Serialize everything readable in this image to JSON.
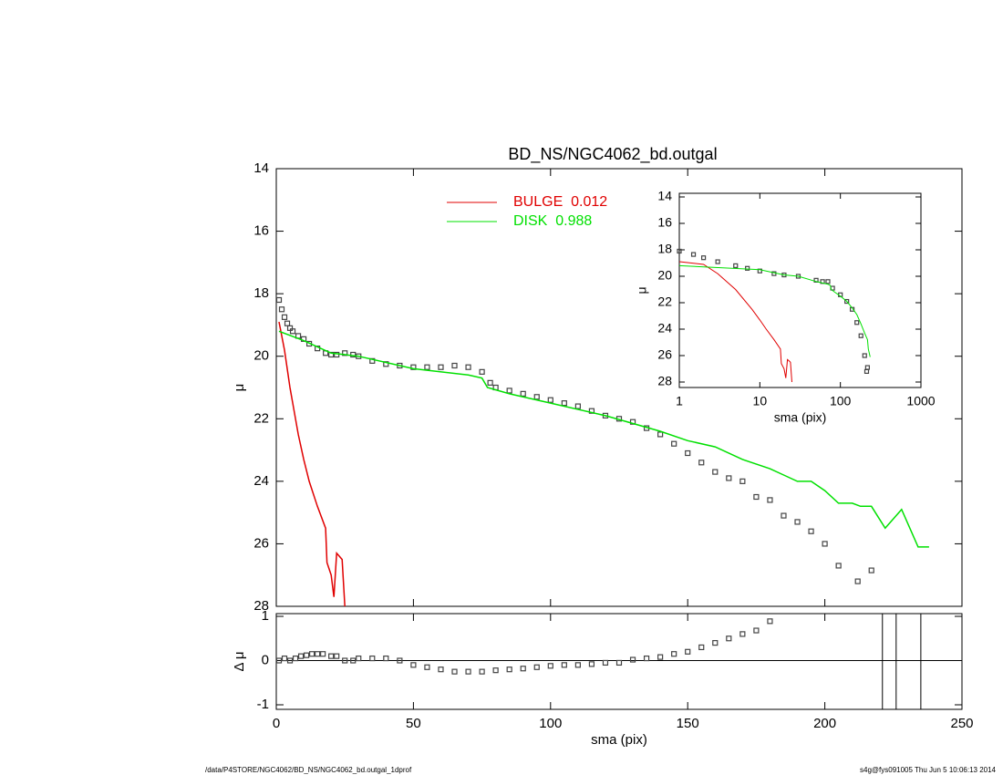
{
  "chart_data": [
    {
      "type": "line",
      "title": "BD_NS/NGC4062_bd.outgal",
      "ylabel": "μ",
      "xlim": [
        0,
        250
      ],
      "xticks": [
        0,
        50,
        100,
        150,
        200,
        250
      ],
      "ylim": [
        14,
        28
      ],
      "yticks": [
        14,
        16,
        18,
        20,
        22,
        24,
        26,
        28
      ],
      "y_reversed": true,
      "legend": "top-center",
      "series": [
        {
          "type": "scatter",
          "color": "#444444",
          "x": [
            1,
            2,
            3,
            4,
            5,
            6,
            8,
            10,
            12,
            15,
            18,
            20,
            22,
            25,
            28,
            30,
            35,
            40,
            45,
            50,
            55,
            60,
            65,
            70,
            75,
            78,
            80,
            85,
            90,
            95,
            100,
            105,
            110,
            115,
            120,
            125,
            130,
            135,
            140,
            145,
            150,
            155,
            160,
            165,
            170,
            175,
            180,
            185,
            190,
            195,
            200,
            205,
            212,
            217
          ],
          "values": [
            18.2,
            18.5,
            18.75,
            18.95,
            19.1,
            19.2,
            19.35,
            19.45,
            19.6,
            19.75,
            19.9,
            19.95,
            19.95,
            19.9,
            19.95,
            20.0,
            20.15,
            20.25,
            20.3,
            20.35,
            20.35,
            20.35,
            20.3,
            20.35,
            20.5,
            20.85,
            21.0,
            21.1,
            21.2,
            21.3,
            21.4,
            21.5,
            21.6,
            21.75,
            21.9,
            22.0,
            22.1,
            22.3,
            22.5,
            22.8,
            23.1,
            23.4,
            23.7,
            23.9,
            24.0,
            24.5,
            24.6,
            25.1,
            25.3,
            25.6,
            26.0,
            26.7,
            27.2,
            26.85
          ]
        },
        {
          "type": "line",
          "name": "BULGE  0.012",
          "color": "#e00000",
          "x": [
            1,
            3,
            5,
            8,
            10,
            12,
            15,
            18,
            18.5,
            20,
            21,
            22,
            23,
            24,
            25
          ],
          "values": [
            18.9,
            19.8,
            21.0,
            22.5,
            23.3,
            24.0,
            24.8,
            25.5,
            26.6,
            27.0,
            27.7,
            26.3,
            26.4,
            26.5,
            28.0
          ]
        },
        {
          "type": "line",
          "name": "DISK  0.988",
          "color": "#00e000",
          "x": [
            1,
            10,
            20,
            30,
            50,
            70,
            75,
            77,
            85,
            100,
            120,
            140,
            150,
            160,
            170,
            180,
            185,
            190,
            195,
            200,
            205,
            210,
            213,
            217,
            222,
            228,
            234,
            238
          ],
          "values": [
            19.2,
            19.5,
            19.9,
            20.0,
            20.4,
            20.6,
            20.7,
            21.0,
            21.2,
            21.5,
            21.9,
            22.4,
            22.7,
            22.9,
            23.3,
            23.6,
            23.8,
            24.0,
            24.0,
            24.3,
            24.7,
            24.7,
            24.8,
            24.8,
            25.5,
            24.9,
            26.1,
            26.1
          ]
        }
      ]
    },
    {
      "type": "scatter",
      "xlabel": "sma (pix)",
      "ylabel": "Δ μ",
      "xlim": [
        0,
        250
      ],
      "xticks": [
        0,
        50,
        100,
        150,
        200,
        250
      ],
      "ylim": [
        -1,
        1
      ],
      "yticks": [
        -1,
        0,
        1
      ],
      "hline": 0,
      "vlines": [
        221,
        226,
        235
      ],
      "series": [
        {
          "type": "scatter",
          "color": "#444444",
          "x": [
            1,
            3,
            5,
            7,
            9,
            11,
            13,
            15,
            17,
            20,
            22,
            25,
            28,
            30,
            35,
            40,
            45,
            50,
            55,
            60,
            65,
            70,
            75,
            80,
            85,
            90,
            95,
            100,
            105,
            110,
            115,
            120,
            125,
            130,
            135,
            140,
            145,
            150,
            155,
            160,
            165,
            170,
            175,
            180
          ],
          "values": [
            0.0,
            0.05,
            0.0,
            0.05,
            0.1,
            0.12,
            0.15,
            0.15,
            0.15,
            0.1,
            0.1,
            0.0,
            0.0,
            0.05,
            0.05,
            0.05,
            0.0,
            -0.1,
            -0.15,
            -0.2,
            -0.25,
            -0.25,
            -0.25,
            -0.22,
            -0.2,
            -0.18,
            -0.15,
            -0.12,
            -0.1,
            -0.1,
            -0.08,
            -0.05,
            -0.05,
            0.02,
            0.05,
            0.08,
            0.15,
            0.2,
            0.3,
            0.4,
            0.5,
            0.6,
            0.68,
            0.89
          ]
        }
      ]
    },
    {
      "type": "line",
      "xlabel": "sma (pix)",
      "ylabel": "μ",
      "log_x": true,
      "xlim": [
        1,
        1000
      ],
      "xticks": [
        1,
        10,
        100,
        1000
      ],
      "ylim": [
        14,
        28
      ],
      "yticks": [
        14,
        16,
        18,
        20,
        22,
        24,
        26,
        28
      ],
      "y_reversed": true,
      "series": [
        {
          "type": "scatter",
          "color": "#444444",
          "x": [
            1,
            1.5,
            2,
            3,
            5,
            7,
            10,
            15,
            20,
            30,
            50,
            60,
            70,
            80,
            100,
            120,
            140,
            160,
            180,
            200,
            212,
            217
          ],
          "values": [
            18.1,
            18.35,
            18.6,
            18.9,
            19.2,
            19.4,
            19.6,
            19.8,
            19.9,
            20.0,
            20.3,
            20.4,
            20.4,
            20.9,
            21.4,
            21.9,
            22.5,
            23.5,
            24.5,
            26.0,
            27.2,
            26.9
          ]
        },
        {
          "type": "line",
          "color": "#e00000",
          "x": [
            1,
            2,
            3,
            5,
            8,
            10,
            12,
            15,
            18,
            18.5,
            20,
            21,
            22,
            23,
            24,
            25
          ],
          "values": [
            18.9,
            19.1,
            19.8,
            21.0,
            22.5,
            23.3,
            24.0,
            24.8,
            25.5,
            26.6,
            27.0,
            27.7,
            26.3,
            26.4,
            26.5,
            28.0
          ]
        },
        {
          "type": "line",
          "color": "#00e000",
          "x": [
            1,
            10,
            20,
            30,
            50,
            70,
            75,
            77,
            85,
            100,
            120,
            140,
            160,
            180,
            200,
            217,
            222,
            234
          ],
          "values": [
            19.2,
            19.5,
            19.9,
            20.0,
            20.4,
            20.6,
            20.7,
            21.0,
            21.2,
            21.5,
            21.9,
            22.4,
            22.9,
            23.6,
            24.3,
            24.8,
            25.5,
            26.1
          ]
        }
      ]
    }
  ],
  "footer_left": "/data/P4STORE/NGC4062/BD_NS/NGC4062_bd.outgal_1dprof",
  "footer_right": "s4g@fys091005  Thu Jun  5 10:06:13 2014"
}
